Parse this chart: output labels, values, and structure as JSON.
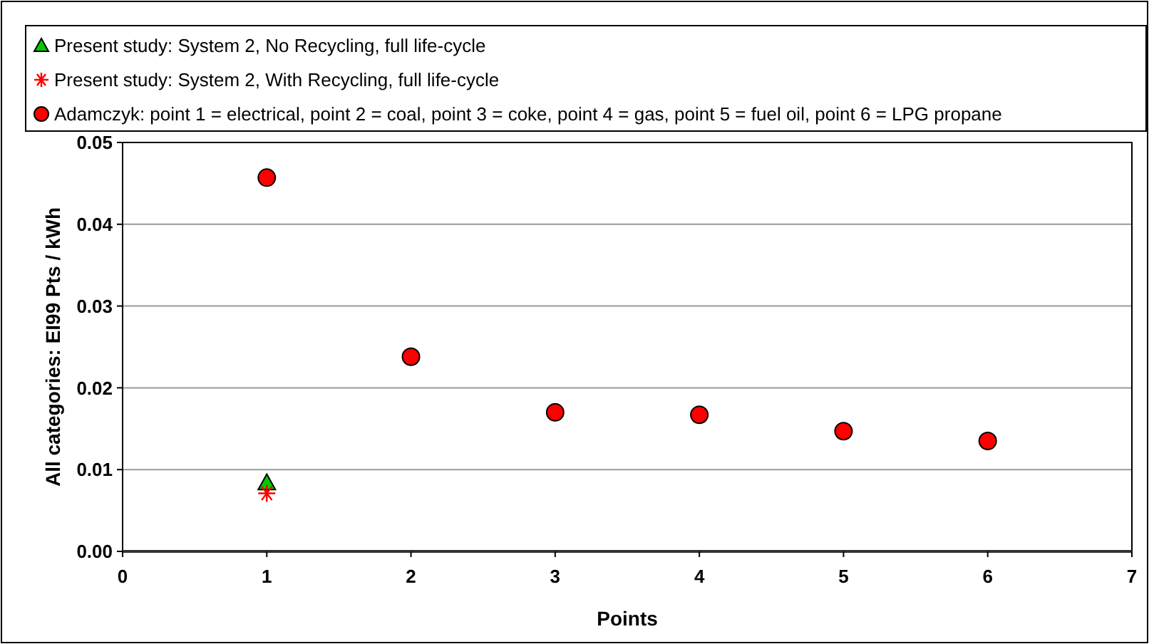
{
  "chart_data": {
    "type": "scatter",
    "xlabel": "Points",
    "ylabel": "All categories: EI99 Pts / kWh",
    "xlim": [
      0,
      7
    ],
    "xticks": [
      0,
      1,
      2,
      3,
      4,
      5,
      6,
      7
    ],
    "ylim": [
      0,
      0.05
    ],
    "yticks": [
      {
        "value": 0,
        "label": "0.00"
      },
      {
        "value": 0.01,
        "label": "0.01"
      },
      {
        "value": 0.02,
        "label": "0.02"
      },
      {
        "value": 0.03,
        "label": "0.03"
      },
      {
        "value": 0.04,
        "label": "0.04"
      },
      {
        "value": 0.05,
        "label": "0.05"
      }
    ],
    "grid": "y",
    "legend": "top",
    "series": [
      {
        "name": "Present study: System 2, No Recycling, full life-cycle",
        "color": "#00cc00",
        "marker": "triangle",
        "x": [
          1
        ],
        "values": [
          0.0084
        ]
      },
      {
        "name": "Present study: System 2, With Recycling, full life-cycle",
        "color": "#ff0000",
        "marker": "cross",
        "x": [
          1
        ],
        "values": [
          0.0071
        ]
      },
      {
        "name": "Adamczyk: point 1 = electrical, point 2 = coal, point 3 = coke, point 4 = gas, point 5 = fuel oil, point 6 = LPG propane",
        "color": "#ff0000",
        "marker": "circle",
        "x": [
          1,
          2,
          3,
          4,
          5,
          6
        ],
        "values": [
          0.0457,
          0.0238,
          0.017,
          0.0167,
          0.0147,
          0.0135
        ]
      }
    ]
  }
}
